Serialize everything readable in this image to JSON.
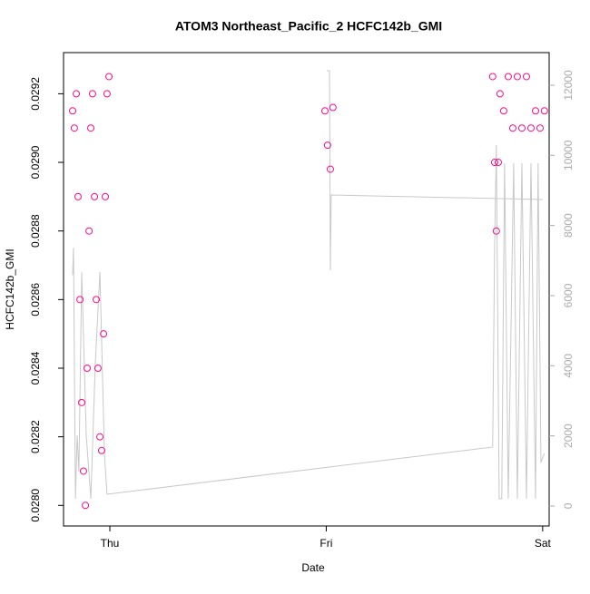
{
  "chart_data": {
    "type": "scatter",
    "title": "ATOM3 Northeast_Pacific_2 HCFC142b_GMI",
    "x_label": "Date",
    "y_label": "HCFC142b_GMI",
    "xlim": [
      -0.214,
      2.03
    ],
    "xticks": [
      {
        "value": 0,
        "label": "Thu"
      },
      {
        "value": 1,
        "label": "Fri"
      },
      {
        "value": 2,
        "label": "Sat"
      }
    ],
    "ylim": [
      0.02794,
      0.02932
    ],
    "yticks": [
      {
        "value": 0.028,
        "label": "0.0280"
      },
      {
        "value": 0.0282,
        "label": "0.0282"
      },
      {
        "value": 0.0284,
        "label": "0.0284"
      },
      {
        "value": 0.0286,
        "label": "0.0286"
      },
      {
        "value": 0.0288,
        "label": "0.0288"
      },
      {
        "value": 0.029,
        "label": "0.0290"
      },
      {
        "value": 0.0292,
        "label": "0.0292"
      }
    ],
    "y2lim": [
      -570,
      12930
    ],
    "y2ticks": [
      0,
      2000,
      4000,
      6000,
      8000,
      10000,
      12000
    ],
    "series": [
      {
        "type": "scatter",
        "color": "#ff0a8c",
        "x": [
          -0.172,
          -0.164,
          -0.155,
          -0.147,
          -0.138,
          -0.13,
          -0.122,
          -0.113,
          -0.105,
          -0.096,
          -0.088,
          -0.08,
          -0.071,
          -0.063,
          -0.055,
          -0.046,
          -0.038,
          -0.029,
          -0.021,
          -0.013,
          -0.004,
          0.994,
          1.006,
          1.019,
          1.031,
          1.769,
          1.778,
          1.786,
          1.795,
          1.803,
          1.82,
          1.841,
          1.862,
          1.883,
          1.904,
          1.925,
          1.946,
          1.967,
          1.988,
          2.008
        ],
        "values": [
          0.02915,
          0.0291,
          0.0292,
          0.0289,
          0.0286,
          0.0283,
          0.0281,
          0.028,
          0.0284,
          0.0288,
          0.0291,
          0.0292,
          0.0289,
          0.0286,
          0.0284,
          0.0282,
          0.02816,
          0.0285,
          0.0289,
          0.0292,
          0.02925,
          0.02915,
          0.02905,
          0.02898,
          0.02916,
          0.02925,
          0.029,
          0.0288,
          0.029,
          0.0292,
          0.02915,
          0.02925,
          0.0291,
          0.02925,
          0.0291,
          0.02925,
          0.0291,
          0.02915,
          0.0291,
          0.02915
        ]
      },
      {
        "type": "line",
        "axis": "y2",
        "color": "#c8c8c8",
        "x": [
          -0.172,
          -0.168,
          -0.159,
          -0.151,
          -0.143,
          -0.13,
          -0.109,
          -0.088,
          -0.067,
          -0.046,
          -0.025,
          -0.013,
          1.769,
          1.778,
          1.786,
          1.799,
          1.811,
          1.824,
          1.841,
          1.866,
          1.883,
          1.904,
          1.925,
          1.946,
          1.967,
          1.979,
          1.992,
          2.008,
          2.008,
          1.002,
          1.015,
          1.019,
          1.023,
          2.0
        ],
        "values": [
          6590,
          7370,
          207,
          2017,
          983,
          6672,
          2017,
          207,
          4086,
          6672,
          1500,
          336,
          1681,
          7448,
          10293,
          207,
          207,
          9775,
          207,
          9775,
          207,
          9775,
          207,
          9775,
          207,
          9775,
          1241,
          1500,
          null,
          12413,
          12413,
          6724,
          8870,
          8741
        ]
      }
    ]
  }
}
